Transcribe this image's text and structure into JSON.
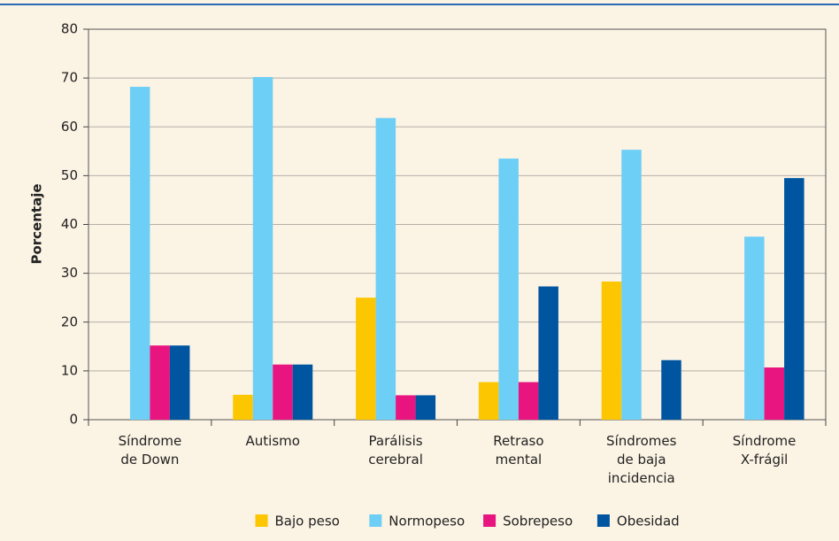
{
  "chart_data": {
    "type": "bar",
    "categories": [
      "Síndrome\nde Down",
      "Autismo",
      "Parálisis\ncerebral",
      "Retraso\nmental",
      "Síndromes\nde baja\nincidencia",
      "Síndrome\nX-frágil"
    ],
    "series": [
      {
        "name": "Bajo peso",
        "color": "#fcc600",
        "values": [
          0,
          5.1,
          25,
          7.7,
          28.3,
          0
        ]
      },
      {
        "name": "Normopeso",
        "color": "#6dcff6",
        "values": [
          68.2,
          70.2,
          61.8,
          53.5,
          55.3,
          37.5
        ]
      },
      {
        "name": "Sobrepeso",
        "color": "#e8147f",
        "values": [
          15.2,
          11.3,
          5,
          7.7,
          0,
          10.7
        ]
      },
      {
        "name": "Obesidad",
        "color": "#0055a0",
        "values": [
          15.2,
          11.3,
          5,
          27.3,
          12.2,
          49.5
        ]
      }
    ],
    "ylabel": "Porcentaje",
    "ylim": [
      0,
      80
    ],
    "yticks": [
      0,
      10,
      20,
      30,
      40,
      50,
      60,
      70,
      80
    ],
    "grid": true,
    "legend": "bottom"
  }
}
